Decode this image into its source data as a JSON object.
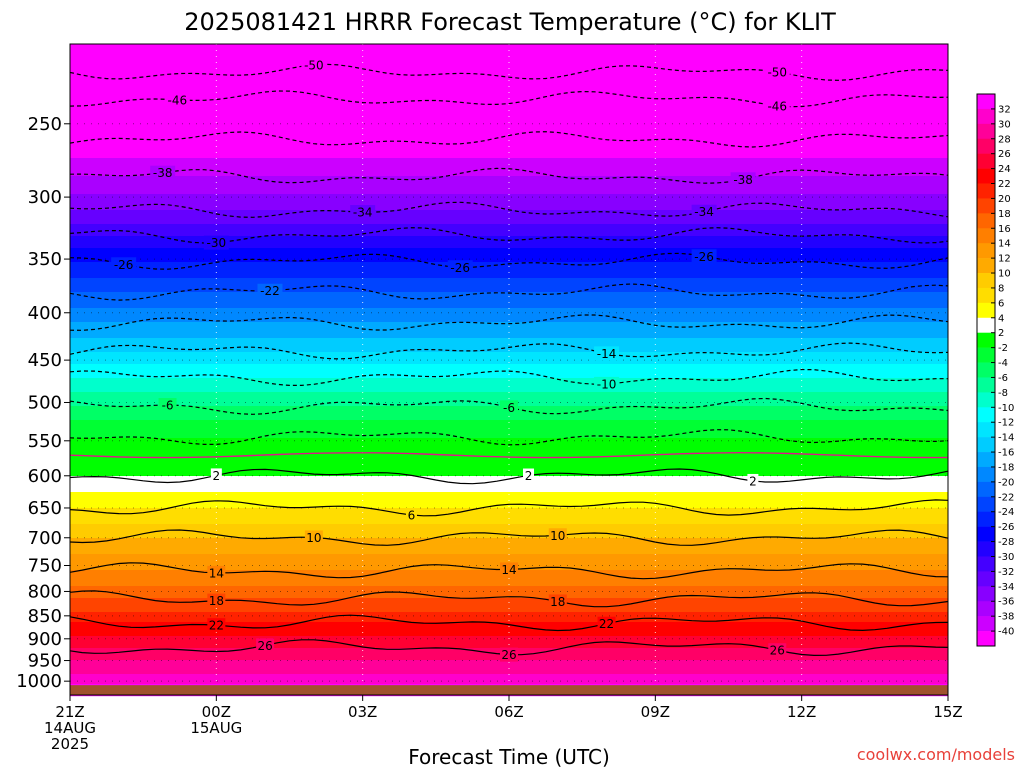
{
  "chart_data": {
    "type": "contour",
    "title": "2025081421 HRRR Forecast Temperature (°C) for KLIT",
    "xlabel": "Forecast Time (UTC)",
    "credit": "coolwx.com/models",
    "credit_color": "#e8413a",
    "ground_color": "#a0522d",
    "x_ticks": [
      {
        "hour": 0,
        "lines": [
          "21Z",
          "14AUG",
          "2025"
        ]
      },
      {
        "hour": 3,
        "lines": [
          "00Z",
          "15AUG"
        ]
      },
      {
        "hour": 6,
        "lines": [
          "03Z"
        ]
      },
      {
        "hour": 9,
        "lines": [
          "06Z"
        ]
      },
      {
        "hour": 12,
        "lines": [
          "09Z"
        ]
      },
      {
        "hour": 15,
        "lines": [
          "12Z"
        ]
      },
      {
        "hour": 18,
        "lines": [
          "15Z"
        ]
      }
    ],
    "xlim": [
      0,
      18
    ],
    "y_ticks": [
      250,
      300,
      350,
      400,
      450,
      500,
      550,
      600,
      650,
      700,
      750,
      800,
      850,
      900,
      950,
      1000
    ],
    "ylim_hPa": [
      205,
      1035
    ],
    "y_scale": "log",
    "surface_pressure_hPa": 1010,
    "colorbar": {
      "levels": [
        32,
        30,
        28,
        26,
        24,
        22,
        20,
        18,
        16,
        14,
        12,
        10,
        8,
        6,
        4,
        2,
        -2,
        -4,
        -6,
        -8,
        -10,
        -12,
        -14,
        -16,
        -18,
        -20,
        -22,
        -24,
        -26,
        -28,
        -30,
        -32,
        -34,
        -36,
        -38,
        -40
      ],
      "colors": [
        "#ff00ff",
        "#ff00cc",
        "#ff0099",
        "#ff0066",
        "#ff0033",
        "#ff0000",
        "#ff2200",
        "#ff4400",
        "#ff6600",
        "#ff7f00",
        "#ff9900",
        "#ffaa00",
        "#ffcc00",
        "#ffdd00",
        "#ffff00",
        "#ffffff",
        "#00ff00",
        "#00ff33",
        "#00ff66",
        "#00ff99",
        "#00ffcc",
        "#00ffff",
        "#00e5ff",
        "#00ccff",
        "#00aaff",
        "#0088ff",
        "#0066ff",
        "#0044ff",
        "#0022ff",
        "#0000ff",
        "#2200ff",
        "#4400ff",
        "#6600ff",
        "#8800ff",
        "#aa00ff",
        "#cc00ff",
        "#ff00ff"
      ]
    },
    "isotherm_levels": [
      -50,
      -46,
      -42,
      -38,
      -34,
      -30,
      -26,
      -22,
      -18,
      -14,
      -10,
      -6,
      -2,
      2,
      6,
      10,
      14,
      18,
      22,
      26
    ],
    "isotherm_labels": [
      {
        "t": -50,
        "hours": [
          5,
          14.5
        ]
      },
      {
        "t": -46,
        "hours": [
          2.2,
          14.5
        ]
      },
      {
        "t": -38,
        "hours": [
          1.9,
          13.8
        ]
      },
      {
        "t": -34,
        "hours": [
          6,
          13
        ]
      },
      {
        "t": -30,
        "hours": [
          3
        ]
      },
      {
        "t": -26,
        "hours": [
          1.1,
          8,
          13
        ]
      },
      {
        "t": -22,
        "hours": [
          4.1
        ]
      },
      {
        "t": -14,
        "hours": [
          11
        ]
      },
      {
        "t": -10,
        "hours": [
          11
        ]
      },
      {
        "t": -6,
        "hours": [
          2,
          9
        ]
      },
      {
        "t": 2,
        "hours": [
          3,
          9.4,
          14
        ]
      },
      {
        "t": 6,
        "hours": [
          7
        ]
      },
      {
        "t": 10,
        "hours": [
          5,
          10
        ]
      },
      {
        "t": 14,
        "hours": [
          3,
          9
        ]
      },
      {
        "t": 18,
        "hours": [
          3,
          10
        ]
      },
      {
        "t": 22,
        "hours": [
          3,
          11
        ]
      },
      {
        "t": 26,
        "hours": [
          4,
          9,
          14.5
        ]
      }
    ],
    "temperature_profile": [
      {
        "p": 205,
        "t": -54
      },
      {
        "p": 220,
        "t": -50
      },
      {
        "p": 235,
        "t": -46
      },
      {
        "p": 260,
        "t": -42
      },
      {
        "p": 285,
        "t": -38
      },
      {
        "p": 310,
        "t": -34
      },
      {
        "p": 330,
        "t": -30
      },
      {
        "p": 352,
        "t": -26
      },
      {
        "p": 380,
        "t": -22
      },
      {
        "p": 410,
        "t": -18
      },
      {
        "p": 440,
        "t": -14
      },
      {
        "p": 470,
        "t": -10
      },
      {
        "p": 505,
        "t": -6
      },
      {
        "p": 530,
        "t": -3
      },
      {
        "p": 545,
        "t": -2
      },
      {
        "p": 570,
        "t": 0
      },
      {
        "p": 600,
        "t": 2
      },
      {
        "p": 650,
        "t": 6
      },
      {
        "p": 700,
        "t": 10
      },
      {
        "p": 760,
        "t": 14
      },
      {
        "p": 815,
        "t": 18
      },
      {
        "p": 865,
        "t": 22
      },
      {
        "p": 920,
        "t": 26
      },
      {
        "p": 980,
        "t": 30
      },
      {
        "p": 1035,
        "t": 34
      }
    ]
  }
}
